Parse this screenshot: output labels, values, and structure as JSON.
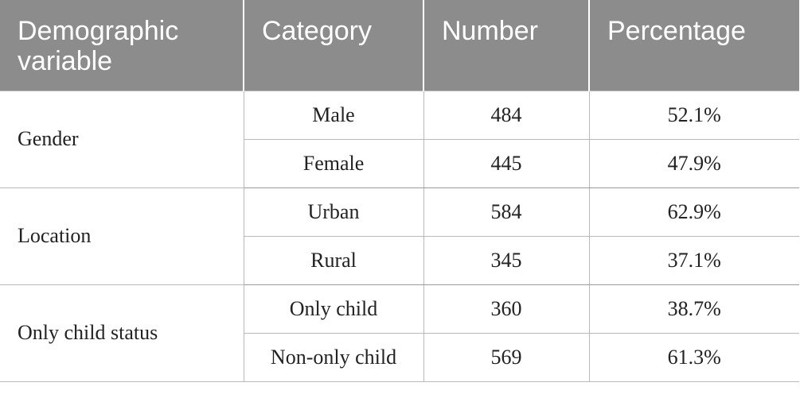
{
  "table": {
    "headers": [
      "Demographic variable",
      "Category",
      "Number",
      "Percentage"
    ],
    "groups": [
      {
        "variable": "Gender",
        "rows": [
          {
            "category": "Male",
            "number": "484",
            "percentage": "52.1%"
          },
          {
            "category": "Female",
            "number": "445",
            "percentage": "47.9%"
          }
        ]
      },
      {
        "variable": "Location",
        "rows": [
          {
            "category": "Urban",
            "number": "584",
            "percentage": "62.9%"
          },
          {
            "category": "Rural",
            "number": "345",
            "percentage": "37.1%"
          }
        ]
      },
      {
        "variable": "Only child status",
        "rows": [
          {
            "category": "Only child",
            "number": "360",
            "percentage": "38.7%"
          },
          {
            "category": "Non-only child",
            "number": "569",
            "percentage": "61.3%"
          }
        ]
      }
    ]
  },
  "colors": {
    "header_bg": "#8c8c8c",
    "header_text": "#ffffff",
    "grid": "#b9b9b9"
  }
}
